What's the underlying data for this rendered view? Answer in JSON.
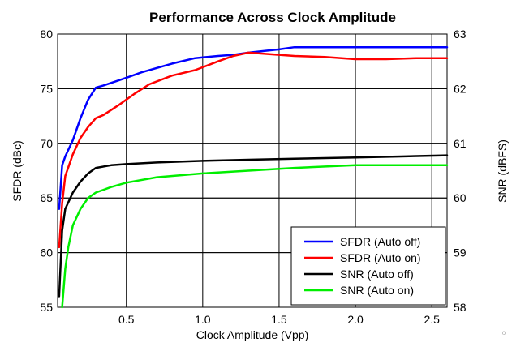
{
  "chart_data": {
    "type": "line",
    "title": "Performance Across Clock Amplitude",
    "xlabel": "Clock Amplitude (Vpp)",
    "ylabel_left": "SFDR (dBc)",
    "ylabel_right": "SNR (dBFS)",
    "xlim": [
      0.05,
      2.6
    ],
    "ylim_left": [
      55,
      80
    ],
    "ylim_right": [
      58,
      63
    ],
    "x_ticks": [
      0.5,
      1.0,
      1.5,
      2.0,
      2.5
    ],
    "x_tick_labels": [
      "0.5",
      "1.0",
      "1.5",
      "2.0",
      "2.5"
    ],
    "y_left_ticks": [
      55,
      60,
      65,
      70,
      75,
      80
    ],
    "y_left_tick_labels": [
      "55",
      "60",
      "65",
      "70",
      "75",
      "80"
    ],
    "y_right_ticks": [
      58,
      59,
      60,
      61,
      62,
      63
    ],
    "y_right_tick_labels": [
      "58",
      "59",
      "60",
      "61",
      "62",
      "63"
    ],
    "grid": true,
    "legend_position": "bottom-right",
    "series": [
      {
        "name": "SFDR (Auto off)",
        "axis": "left",
        "color": "#0000ff",
        "x": [
          0.06,
          0.08,
          0.1,
          0.15,
          0.2,
          0.25,
          0.3,
          0.35,
          0.5,
          0.6,
          0.8,
          0.95,
          1.1,
          1.2,
          1.3,
          1.5,
          1.6,
          1.8,
          2.0,
          2.2,
          2.4,
          2.6
        ],
        "y": [
          64.0,
          68.0,
          68.8,
          70.3,
          72.3,
          74.0,
          75.1,
          75.3,
          76.0,
          76.5,
          77.3,
          77.8,
          78.0,
          78.1,
          78.3,
          78.6,
          78.8,
          78.8,
          78.8,
          78.8,
          78.8,
          78.8
        ]
      },
      {
        "name": "SFDR (Auto on)",
        "axis": "left",
        "color": "#ff0000",
        "x": [
          0.06,
          0.08,
          0.1,
          0.15,
          0.2,
          0.25,
          0.3,
          0.35,
          0.45,
          0.55,
          0.65,
          0.8,
          0.95,
          1.1,
          1.2,
          1.3,
          1.5,
          1.6,
          1.8,
          2.0,
          2.2,
          2.4,
          2.6
        ],
        "y": [
          60.5,
          64.5,
          67.0,
          69.0,
          70.5,
          71.5,
          72.3,
          72.6,
          73.5,
          74.5,
          75.4,
          76.2,
          76.7,
          77.5,
          78.0,
          78.3,
          78.1,
          78.0,
          77.9,
          77.7,
          77.7,
          77.8,
          77.8
        ]
      },
      {
        "name": "SNR (Auto off)",
        "axis": "right",
        "color": "#000000",
        "x": [
          0.06,
          0.08,
          0.1,
          0.15,
          0.2,
          0.25,
          0.3,
          0.4,
          0.5,
          0.7,
          1.0,
          1.3,
          1.6,
          2.0,
          2.3,
          2.6
        ],
        "y": [
          58.2,
          59.4,
          59.8,
          60.1,
          60.3,
          60.45,
          60.55,
          60.6,
          60.62,
          60.65,
          60.68,
          60.7,
          60.72,
          60.74,
          60.76,
          60.78
        ]
      },
      {
        "name": "SNR (Auto on)",
        "axis": "right",
        "color": "#00ee00",
        "x": [
          0.08,
          0.1,
          0.12,
          0.15,
          0.2,
          0.25,
          0.3,
          0.4,
          0.5,
          0.7,
          1.0,
          1.3,
          1.6,
          2.0,
          2.3,
          2.6
        ],
        "y": [
          58.0,
          58.7,
          59.1,
          59.5,
          59.8,
          60.0,
          60.1,
          60.2,
          60.28,
          60.38,
          60.45,
          60.5,
          60.55,
          60.6,
          60.6,
          60.6
        ]
      }
    ]
  }
}
